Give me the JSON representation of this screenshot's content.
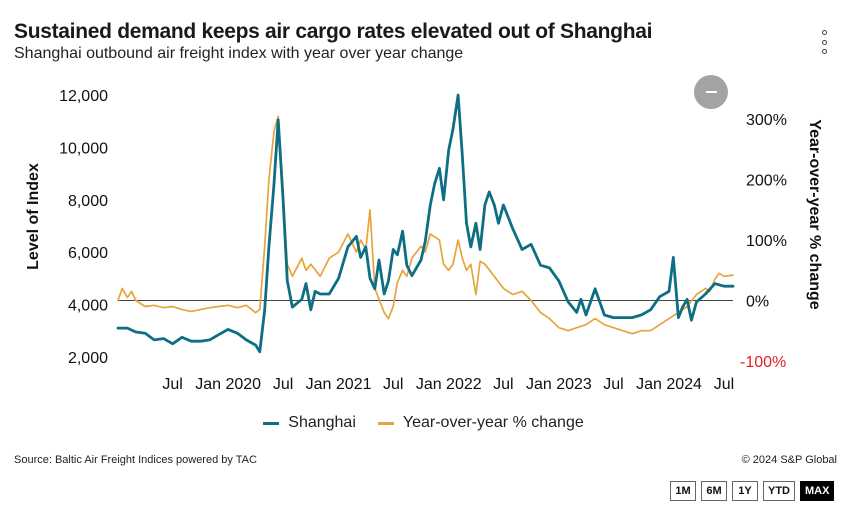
{
  "header": {
    "title": "Sustained demand keeps air cargo rates elevated out of Shanghai",
    "subtitle": "Shanghai outbound air freight index with year over year change"
  },
  "icons": {
    "menu": "more-vertical-icon",
    "zoom": "zoom-out-icon"
  },
  "colors": {
    "shanghai": "#0e6e83",
    "yoy": "#e8a33d",
    "negative_axis": "#e02020"
  },
  "legend": {
    "shanghai": "Shanghai",
    "yoy": "Year-over-year % change"
  },
  "footer": {
    "source": "Source: Baltic Air Freight Indices powered by TAC",
    "copyright": "© 2024 S&P Global"
  },
  "range_buttons": [
    {
      "label": "1M",
      "active": false
    },
    {
      "label": "6M",
      "active": false
    },
    {
      "label": "1Y",
      "active": false
    },
    {
      "label": "YTD",
      "active": false
    },
    {
      "label": "MAX",
      "active": true
    }
  ],
  "chart_data": {
    "type": "line",
    "title": "Sustained demand keeps air cargo rates elevated out of Shanghai",
    "subtitle": "Shanghai outbound air freight index with year over year change",
    "x_range": [
      "2019-01-01",
      "2024-07-31"
    ],
    "x_tick_labels": [
      {
        "date": "2019-07-01",
        "label": "Jul"
      },
      {
        "date": "2020-01-01",
        "label": "Jan 2020"
      },
      {
        "date": "2020-07-01",
        "label": "Jul"
      },
      {
        "date": "2021-01-01",
        "label": "Jan 2021"
      },
      {
        "date": "2021-07-01",
        "label": "Jul"
      },
      {
        "date": "2022-01-01",
        "label": "Jan 2022"
      },
      {
        "date": "2022-07-01",
        "label": "Jul"
      },
      {
        "date": "2023-01-01",
        "label": "Jan 2023"
      },
      {
        "date": "2023-07-01",
        "label": "Jul"
      },
      {
        "date": "2024-01-01",
        "label": "Jan 2024"
      },
      {
        "date": "2024-07-01",
        "label": "Jul"
      }
    ],
    "y_left": {
      "label": "Level of Index",
      "range": [
        1500,
        12000
      ],
      "ticks": [
        2000,
        4000,
        6000,
        8000,
        10000,
        12000
      ],
      "tick_labels": [
        "2,000",
        "4,000",
        "6,000",
        "8,000",
        "10,000",
        "12,000"
      ]
    },
    "y_right": {
      "label": "Year-over-year % change",
      "range": [
        -115,
        340
      ],
      "ticks": [
        -100,
        0,
        100,
        200,
        300
      ],
      "tick_labels": [
        "-100%",
        "0%",
        "100%",
        "200%",
        "300%"
      ]
    },
    "zero_line": true,
    "grid": false,
    "legend_position": "bottom-center",
    "series": [
      {
        "name": "Shanghai",
        "axis": "left",
        "color": "#0e6e83",
        "points": [
          [
            "2019-01-01",
            3100
          ],
          [
            "2019-02-01",
            3100
          ],
          [
            "2019-03-01",
            2950
          ],
          [
            "2019-04-01",
            2900
          ],
          [
            "2019-05-01",
            2650
          ],
          [
            "2019-06-01",
            2700
          ],
          [
            "2019-07-01",
            2500
          ],
          [
            "2019-08-01",
            2750
          ],
          [
            "2019-09-01",
            2600
          ],
          [
            "2019-10-01",
            2600
          ],
          [
            "2019-11-01",
            2650
          ],
          [
            "2019-12-01",
            2850
          ],
          [
            "2020-01-01",
            3050
          ],
          [
            "2020-02-01",
            2900
          ],
          [
            "2020-03-01",
            2650
          ],
          [
            "2020-04-01",
            2450
          ],
          [
            "2020-04-15",
            2200
          ],
          [
            "2020-05-01",
            3800
          ],
          [
            "2020-05-15",
            6200
          ],
          [
            "2020-06-01",
            8600
          ],
          [
            "2020-06-15",
            11050
          ],
          [
            "2020-07-01",
            8000
          ],
          [
            "2020-07-15",
            4900
          ],
          [
            "2020-08-01",
            3900
          ],
          [
            "2020-09-01",
            4200
          ],
          [
            "2020-09-15",
            4800
          ],
          [
            "2020-10-01",
            3800
          ],
          [
            "2020-10-15",
            4500
          ],
          [
            "2020-11-01",
            4400
          ],
          [
            "2020-12-01",
            4400
          ],
          [
            "2021-01-01",
            5000
          ],
          [
            "2021-02-01",
            6200
          ],
          [
            "2021-03-01",
            6600
          ],
          [
            "2021-03-15",
            5800
          ],
          [
            "2021-04-01",
            6200
          ],
          [
            "2021-04-15",
            5000
          ],
          [
            "2021-05-01",
            4600
          ],
          [
            "2021-05-15",
            5700
          ],
          [
            "2021-06-01",
            4400
          ],
          [
            "2021-06-15",
            4900
          ],
          [
            "2021-07-01",
            6100
          ],
          [
            "2021-07-15",
            5900
          ],
          [
            "2021-08-01",
            6800
          ],
          [
            "2021-08-15",
            5500
          ],
          [
            "2021-09-01",
            5100
          ],
          [
            "2021-10-01",
            5700
          ],
          [
            "2021-10-15",
            6400
          ],
          [
            "2021-11-01",
            7800
          ],
          [
            "2021-11-15",
            8600
          ],
          [
            "2021-12-01",
            9200
          ],
          [
            "2021-12-15",
            8000
          ],
          [
            "2022-01-01",
            9900
          ],
          [
            "2022-01-15",
            10700
          ],
          [
            "2022-02-01",
            12000
          ],
          [
            "2022-02-15",
            9700
          ],
          [
            "2022-03-01",
            7100
          ],
          [
            "2022-03-15",
            6200
          ],
          [
            "2022-04-01",
            7100
          ],
          [
            "2022-04-15",
            6100
          ],
          [
            "2022-05-01",
            7800
          ],
          [
            "2022-05-15",
            8300
          ],
          [
            "2022-06-01",
            7800
          ],
          [
            "2022-06-15",
            7100
          ],
          [
            "2022-07-01",
            7800
          ],
          [
            "2022-08-01",
            6900
          ],
          [
            "2022-09-01",
            6100
          ],
          [
            "2022-10-01",
            6300
          ],
          [
            "2022-11-01",
            5500
          ],
          [
            "2022-12-01",
            5400
          ],
          [
            "2023-01-01",
            4900
          ],
          [
            "2023-02-01",
            4100
          ],
          [
            "2023-03-01",
            3700
          ],
          [
            "2023-03-15",
            4200
          ],
          [
            "2023-04-01",
            3600
          ],
          [
            "2023-05-01",
            4600
          ],
          [
            "2023-06-01",
            3600
          ],
          [
            "2023-07-01",
            3500
          ],
          [
            "2023-08-01",
            3500
          ],
          [
            "2023-09-01",
            3500
          ],
          [
            "2023-10-01",
            3600
          ],
          [
            "2023-11-01",
            3800
          ],
          [
            "2023-12-01",
            4300
          ],
          [
            "2024-01-01",
            4500
          ],
          [
            "2024-01-15",
            5800
          ],
          [
            "2024-02-01",
            3500
          ],
          [
            "2024-02-15",
            3900
          ],
          [
            "2024-03-01",
            4200
          ],
          [
            "2024-03-15",
            3400
          ],
          [
            "2024-04-01",
            4100
          ],
          [
            "2024-05-01",
            4400
          ],
          [
            "2024-06-01",
            4800
          ],
          [
            "2024-07-01",
            4700
          ],
          [
            "2024-07-31",
            4700
          ]
        ]
      },
      {
        "name": "Year-over-year % change",
        "axis": "right",
        "color": "#e8a33d",
        "points": [
          [
            "2019-01-01",
            0
          ],
          [
            "2019-01-15",
            20
          ],
          [
            "2019-02-01",
            5
          ],
          [
            "2019-02-15",
            15
          ],
          [
            "2019-03-01",
            0
          ],
          [
            "2019-04-01",
            -10
          ],
          [
            "2019-05-01",
            -8
          ],
          [
            "2019-06-01",
            -12
          ],
          [
            "2019-07-01",
            -10
          ],
          [
            "2019-08-01",
            -15
          ],
          [
            "2019-09-01",
            -18
          ],
          [
            "2019-10-01",
            -15
          ],
          [
            "2019-11-01",
            -12
          ],
          [
            "2019-12-01",
            -10
          ],
          [
            "2020-01-01",
            -8
          ],
          [
            "2020-02-01",
            -12
          ],
          [
            "2020-03-01",
            -8
          ],
          [
            "2020-04-01",
            -20
          ],
          [
            "2020-04-15",
            -15
          ],
          [
            "2020-05-01",
            90
          ],
          [
            "2020-05-15",
            200
          ],
          [
            "2020-06-01",
            280
          ],
          [
            "2020-06-15",
            305
          ],
          [
            "2020-07-01",
            180
          ],
          [
            "2020-07-15",
            60
          ],
          [
            "2020-08-01",
            40
          ],
          [
            "2020-09-01",
            70
          ],
          [
            "2020-09-15",
            50
          ],
          [
            "2020-10-01",
            60
          ],
          [
            "2020-11-01",
            40
          ],
          [
            "2020-12-01",
            70
          ],
          [
            "2021-01-01",
            80
          ],
          [
            "2021-02-01",
            110
          ],
          [
            "2021-03-01",
            80
          ],
          [
            "2021-03-15",
            100
          ],
          [
            "2021-04-01",
            85
          ],
          [
            "2021-04-15",
            150
          ],
          [
            "2021-05-01",
            20
          ],
          [
            "2021-06-01",
            -20
          ],
          [
            "2021-06-15",
            -30
          ],
          [
            "2021-07-01",
            -10
          ],
          [
            "2021-07-15",
            30
          ],
          [
            "2021-08-01",
            50
          ],
          [
            "2021-08-15",
            40
          ],
          [
            "2021-09-01",
            70
          ],
          [
            "2021-10-01",
            90
          ],
          [
            "2021-10-15",
            80
          ],
          [
            "2021-11-01",
            110
          ],
          [
            "2021-12-01",
            100
          ],
          [
            "2021-12-15",
            60
          ],
          [
            "2022-01-01",
            50
          ],
          [
            "2022-01-15",
            60
          ],
          [
            "2022-02-01",
            100
          ],
          [
            "2022-02-15",
            70
          ],
          [
            "2022-03-01",
            50
          ],
          [
            "2022-03-15",
            60
          ],
          [
            "2022-04-01",
            10
          ],
          [
            "2022-04-15",
            65
          ],
          [
            "2022-05-01",
            60
          ],
          [
            "2022-06-01",
            40
          ],
          [
            "2022-07-01",
            20
          ],
          [
            "2022-08-01",
            10
          ],
          [
            "2022-09-01",
            15
          ],
          [
            "2022-10-01",
            0
          ],
          [
            "2022-11-01",
            -20
          ],
          [
            "2022-12-01",
            -30
          ],
          [
            "2023-01-01",
            -45
          ],
          [
            "2023-02-01",
            -50
          ],
          [
            "2023-03-01",
            -45
          ],
          [
            "2023-04-01",
            -40
          ],
          [
            "2023-05-01",
            -30
          ],
          [
            "2023-06-01",
            -40
          ],
          [
            "2023-07-01",
            -45
          ],
          [
            "2023-08-01",
            -50
          ],
          [
            "2023-09-01",
            -55
          ],
          [
            "2023-10-01",
            -50
          ],
          [
            "2023-11-01",
            -50
          ],
          [
            "2023-12-01",
            -40
          ],
          [
            "2024-01-01",
            -30
          ],
          [
            "2024-02-01",
            -20
          ],
          [
            "2024-03-01",
            -10
          ],
          [
            "2024-04-01",
            10
          ],
          [
            "2024-05-01",
            20
          ],
          [
            "2024-05-15",
            15
          ],
          [
            "2024-06-01",
            35
          ],
          [
            "2024-06-15",
            45
          ],
          [
            "2024-07-01",
            40
          ],
          [
            "2024-07-31",
            42
          ]
        ]
      }
    ]
  }
}
